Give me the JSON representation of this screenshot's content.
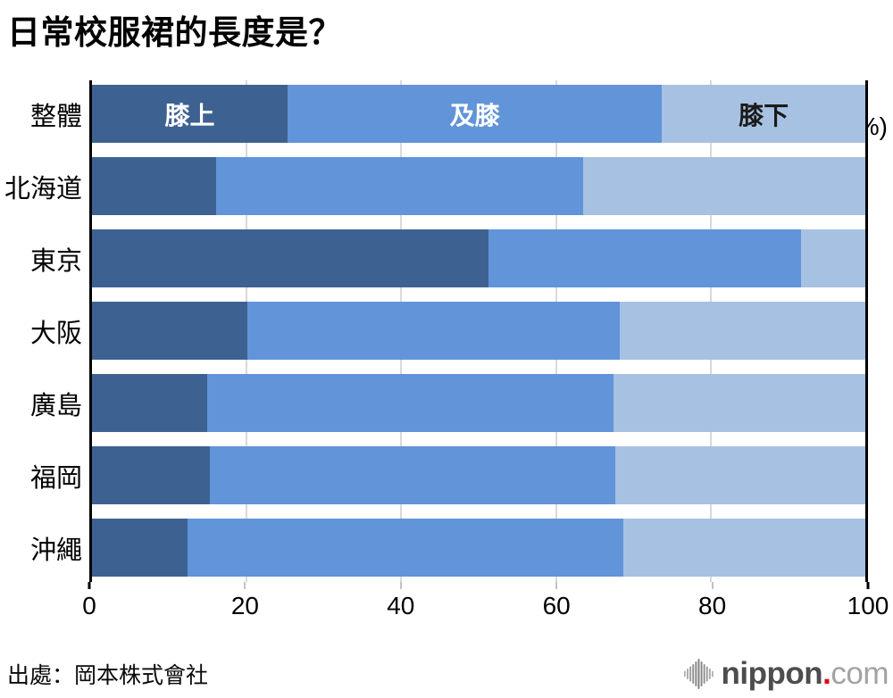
{
  "title": "日常校服裙的長度是？",
  "source": "出處：岡本株式會社",
  "logo": {
    "icon": "waveform-bars-icon",
    "nippon": "nippon",
    "dot": ".",
    "com": "com"
  },
  "colors": {
    "above_knee": "#3d6292",
    "at_knee": "#6194d8",
    "below_knee": "#a7c1e2",
    "grid": "#d9d9d9",
    "axis_line": "#000000"
  },
  "chart_data": {
    "type": "bar",
    "stacked": true,
    "orientation": "horizontal",
    "title": "日常校服裙的長度是？",
    "categories": [
      "整體",
      "北海道",
      "東京",
      "大阪",
      "廣島",
      "福岡",
      "沖繩"
    ],
    "series": [
      {
        "name": "膝上",
        "color": "#3d6292",
        "label_color": "#ffffff",
        "values": [
          25.3,
          16.1,
          51.3,
          20.1,
          14.9,
          15.3,
          12.4
        ]
      },
      {
        "name": "及膝",
        "color": "#6194d8",
        "label_color": "#ffffff",
        "values": [
          48.4,
          47.4,
          40.4,
          48.2,
          52.5,
          52.4,
          56.3
        ]
      },
      {
        "name": "膝下",
        "color": "#a7c1e2",
        "label_color": "#1a1a1a",
        "values": [
          26.3,
          36.5,
          8.3,
          31.7,
          32.6,
          32.3,
          31.3
        ]
      }
    ],
    "xlim": [
      0,
      100
    ],
    "x_ticks": [
      0,
      20,
      40,
      60,
      80,
      100
    ],
    "x_tick_labels": [
      "0",
      "20",
      "40",
      "60",
      "80",
      "100"
    ],
    "unit": "(%)",
    "grid": true,
    "legend_position": "inside-first-bar",
    "legend_entries": [
      "膝上",
      "及膝",
      "膝下"
    ]
  }
}
